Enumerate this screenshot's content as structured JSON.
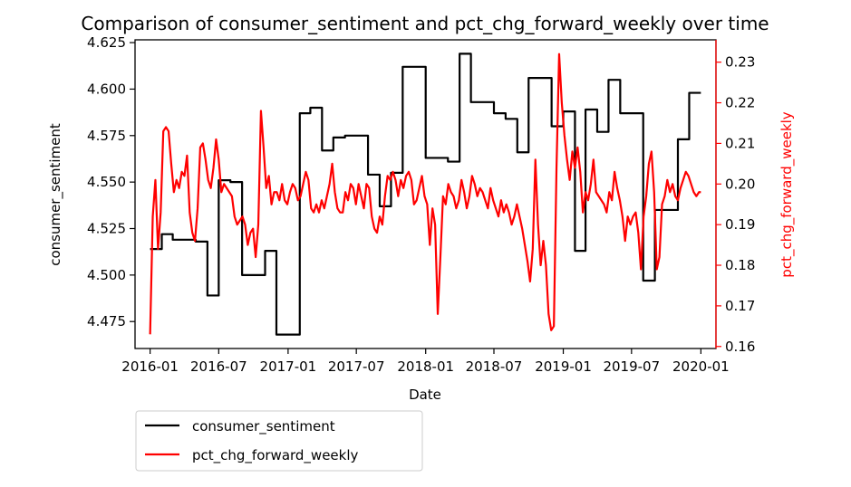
{
  "chart_data": {
    "type": "line",
    "title": "Comparison of consumer_sentiment and pct_chg_forward_weekly over time",
    "xlabel": "Date",
    "ylabel_left": "consumer_sentiment",
    "ylabel_right": "pct_chg_forward_weekly",
    "x_ticks": [
      "2016-01",
      "2016-07",
      "2017-01",
      "2017-07",
      "2018-01",
      "2018-07",
      "2019-01",
      "2019-07",
      "2020-01"
    ],
    "y_left_ticks": [
      "4.475",
      "4.500",
      "4.525",
      "4.550",
      "4.575",
      "4.600",
      "4.625"
    ],
    "y_right_ticks": [
      "0.16",
      "0.17",
      "0.18",
      "0.19",
      "0.20",
      "0.21",
      "0.22",
      "0.23"
    ],
    "xlim": [
      "2015-11-22",
      "2020-02-10"
    ],
    "ylim_left": [
      4.4605,
      4.6265
    ],
    "ylim_right": [
      0.1595,
      0.2355
    ],
    "grid": false,
    "legend_placement": "below-left",
    "colors": {
      "consumer_sentiment": "#000000",
      "pct_chg_forward_weekly": "#ff0000",
      "right_axis": "#ff0000"
    },
    "series": [
      {
        "name": "consumer_sentiment",
        "axis": "left",
        "color": "#000000",
        "step": true,
        "points": [
          [
            "2016-01-01",
            4.514
          ],
          [
            "2016-02-01",
            4.522
          ],
          [
            "2016-03-01",
            4.519
          ],
          [
            "2016-05-01",
            4.518
          ],
          [
            "2016-06-01",
            4.489
          ],
          [
            "2016-07-01",
            4.551
          ],
          [
            "2016-08-01",
            4.55
          ],
          [
            "2016-09-01",
            4.5
          ],
          [
            "2016-11-01",
            4.513
          ],
          [
            "2016-12-01",
            4.468
          ],
          [
            "2017-02-01",
            4.587
          ],
          [
            "2017-03-01",
            4.59
          ],
          [
            "2017-04-01",
            4.567
          ],
          [
            "2017-05-01",
            4.574
          ],
          [
            "2017-06-01",
            4.575
          ],
          [
            "2017-08-01",
            4.554
          ],
          [
            "2017-09-01",
            4.537
          ],
          [
            "2017-10-01",
            4.555
          ],
          [
            "2017-11-01",
            4.612
          ],
          [
            "2018-01-01",
            4.563
          ],
          [
            "2018-03-01",
            4.561
          ],
          [
            "2018-04-01",
            4.619
          ],
          [
            "2018-05-01",
            4.593
          ],
          [
            "2018-07-01",
            4.587
          ],
          [
            "2018-08-01",
            4.584
          ],
          [
            "2018-09-01",
            4.566
          ],
          [
            "2018-10-01",
            4.606
          ],
          [
            "2018-12-01",
            4.58
          ],
          [
            "2019-01-01",
            4.588
          ],
          [
            "2019-02-01",
            4.513
          ],
          [
            "2019-03-01",
            4.589
          ],
          [
            "2019-04-01",
            4.577
          ],
          [
            "2019-05-01",
            4.605
          ],
          [
            "2019-06-01",
            4.587
          ],
          [
            "2019-08-01",
            4.497
          ],
          [
            "2019-09-01",
            4.535
          ],
          [
            "2019-11-01",
            4.573
          ],
          [
            "2019-12-01",
            4.598
          ],
          [
            "2020-01-01",
            4.598
          ]
        ]
      },
      {
        "name": "pct_chg_forward_weekly",
        "axis": "right",
        "color": "#ff0000",
        "step": false,
        "points": [
          [
            "2016-01-01",
            0.163
          ],
          [
            "2016-01-08",
            0.192
          ],
          [
            "2016-01-15",
            0.201
          ],
          [
            "2016-01-22",
            0.184
          ],
          [
            "2016-01-29",
            0.193
          ],
          [
            "2016-02-05",
            0.213
          ],
          [
            "2016-02-12",
            0.214
          ],
          [
            "2016-02-19",
            0.213
          ],
          [
            "2016-02-26",
            0.205
          ],
          [
            "2016-03-04",
            0.198
          ],
          [
            "2016-03-11",
            0.201
          ],
          [
            "2016-03-18",
            0.199
          ],
          [
            "2016-03-25",
            0.203
          ],
          [
            "2016-04-01",
            0.202
          ],
          [
            "2016-04-08",
            0.207
          ],
          [
            "2016-04-15",
            0.193
          ],
          [
            "2016-04-22",
            0.188
          ],
          [
            "2016-04-29",
            0.186
          ],
          [
            "2016-05-06",
            0.194
          ],
          [
            "2016-05-13",
            0.209
          ],
          [
            "2016-05-20",
            0.21
          ],
          [
            "2016-05-27",
            0.206
          ],
          [
            "2016-06-03",
            0.201
          ],
          [
            "2016-06-10",
            0.199
          ],
          [
            "2016-06-17",
            0.204
          ],
          [
            "2016-06-24",
            0.211
          ],
          [
            "2016-07-01",
            0.206
          ],
          [
            "2016-07-08",
            0.198
          ],
          [
            "2016-07-15",
            0.2
          ],
          [
            "2016-07-22",
            0.199
          ],
          [
            "2016-07-29",
            0.198
          ],
          [
            "2016-08-05",
            0.197
          ],
          [
            "2016-08-12",
            0.192
          ],
          [
            "2016-08-19",
            0.19
          ],
          [
            "2016-08-26",
            0.191
          ],
          [
            "2016-09-02",
            0.192
          ],
          [
            "2016-09-09",
            0.19
          ],
          [
            "2016-09-16",
            0.185
          ],
          [
            "2016-09-23",
            0.188
          ],
          [
            "2016-09-30",
            0.189
          ],
          [
            "2016-10-07",
            0.182
          ],
          [
            "2016-10-14",
            0.19
          ],
          [
            "2016-10-21",
            0.218
          ],
          [
            "2016-10-28",
            0.209
          ],
          [
            "2016-11-04",
            0.199
          ],
          [
            "2016-11-11",
            0.202
          ],
          [
            "2016-11-18",
            0.195
          ],
          [
            "2016-11-25",
            0.198
          ],
          [
            "2016-12-02",
            0.198
          ],
          [
            "2016-12-09",
            0.196
          ],
          [
            "2016-12-16",
            0.2
          ],
          [
            "2016-12-23",
            0.196
          ],
          [
            "2016-12-30",
            0.195
          ],
          [
            "2017-01-06",
            0.198
          ],
          [
            "2017-01-13",
            0.2
          ],
          [
            "2017-01-20",
            0.199
          ],
          [
            "2017-01-27",
            0.196
          ],
          [
            "2017-02-03",
            0.197
          ],
          [
            "2017-02-10",
            0.2
          ],
          [
            "2017-02-17",
            0.203
          ],
          [
            "2017-02-24",
            0.201
          ],
          [
            "2017-03-03",
            0.194
          ],
          [
            "2017-03-10",
            0.193
          ],
          [
            "2017-03-17",
            0.195
          ],
          [
            "2017-03-24",
            0.193
          ],
          [
            "2017-03-31",
            0.196
          ],
          [
            "2017-04-07",
            0.194
          ],
          [
            "2017-04-14",
            0.197
          ],
          [
            "2017-04-21",
            0.2
          ],
          [
            "2017-04-28",
            0.205
          ],
          [
            "2017-05-05",
            0.198
          ],
          [
            "2017-05-12",
            0.194
          ],
          [
            "2017-05-19",
            0.193
          ],
          [
            "2017-05-26",
            0.193
          ],
          [
            "2017-06-02",
            0.198
          ],
          [
            "2017-06-09",
            0.196
          ],
          [
            "2017-06-16",
            0.2
          ],
          [
            "2017-06-23",
            0.199
          ],
          [
            "2017-06-30",
            0.195
          ],
          [
            "2017-07-07",
            0.2
          ],
          [
            "2017-07-14",
            0.197
          ],
          [
            "2017-07-21",
            0.194
          ],
          [
            "2017-07-28",
            0.2
          ],
          [
            "2017-08-04",
            0.199
          ],
          [
            "2017-08-11",
            0.192
          ],
          [
            "2017-08-18",
            0.189
          ],
          [
            "2017-08-25",
            0.188
          ],
          [
            "2017-09-01",
            0.192
          ],
          [
            "2017-09-08",
            0.19
          ],
          [
            "2017-09-15",
            0.197
          ],
          [
            "2017-09-22",
            0.202
          ],
          [
            "2017-09-29",
            0.201
          ],
          [
            "2017-10-06",
            0.203
          ],
          [
            "2017-10-13",
            0.201
          ],
          [
            "2017-10-20",
            0.197
          ],
          [
            "2017-10-27",
            0.201
          ],
          [
            "2017-11-03",
            0.199
          ],
          [
            "2017-11-10",
            0.202
          ],
          [
            "2017-11-17",
            0.203
          ],
          [
            "2017-11-24",
            0.201
          ],
          [
            "2017-12-01",
            0.195
          ],
          [
            "2017-12-08",
            0.196
          ],
          [
            "2017-12-15",
            0.199
          ],
          [
            "2017-12-22",
            0.202
          ],
          [
            "2017-12-29",
            0.197
          ],
          [
            "2018-01-05",
            0.195
          ],
          [
            "2018-01-12",
            0.185
          ],
          [
            "2018-01-19",
            0.194
          ],
          [
            "2018-01-26",
            0.19
          ],
          [
            "2018-02-02",
            0.168
          ],
          [
            "2018-02-09",
            0.182
          ],
          [
            "2018-02-16",
            0.197
          ],
          [
            "2018-02-23",
            0.195
          ],
          [
            "2018-03-02",
            0.2
          ],
          [
            "2018-03-09",
            0.198
          ],
          [
            "2018-03-16",
            0.197
          ],
          [
            "2018-03-23",
            0.194
          ],
          [
            "2018-03-30",
            0.196
          ],
          [
            "2018-04-06",
            0.201
          ],
          [
            "2018-04-13",
            0.198
          ],
          [
            "2018-04-20",
            0.194
          ],
          [
            "2018-04-27",
            0.197
          ],
          [
            "2018-05-04",
            0.202
          ],
          [
            "2018-05-11",
            0.2
          ],
          [
            "2018-05-18",
            0.197
          ],
          [
            "2018-05-25",
            0.199
          ],
          [
            "2018-06-01",
            0.198
          ],
          [
            "2018-06-08",
            0.196
          ],
          [
            "2018-06-15",
            0.194
          ],
          [
            "2018-06-22",
            0.199
          ],
          [
            "2018-06-29",
            0.196
          ],
          [
            "2018-07-06",
            0.194
          ],
          [
            "2018-07-13",
            0.192
          ],
          [
            "2018-07-20",
            0.196
          ],
          [
            "2018-07-27",
            0.193
          ],
          [
            "2018-08-03",
            0.195
          ],
          [
            "2018-08-10",
            0.193
          ],
          [
            "2018-08-17",
            0.19
          ],
          [
            "2018-08-24",
            0.192
          ],
          [
            "2018-08-31",
            0.195
          ],
          [
            "2018-09-07",
            0.192
          ],
          [
            "2018-09-14",
            0.189
          ],
          [
            "2018-09-21",
            0.185
          ],
          [
            "2018-09-28",
            0.181
          ],
          [
            "2018-10-05",
            0.176
          ],
          [
            "2018-10-12",
            0.184
          ],
          [
            "2018-10-19",
            0.206
          ],
          [
            "2018-10-26",
            0.19
          ],
          [
            "2018-11-02",
            0.18
          ],
          [
            "2018-11-09",
            0.186
          ],
          [
            "2018-11-16",
            0.18
          ],
          [
            "2018-11-23",
            0.168
          ],
          [
            "2018-11-30",
            0.164
          ],
          [
            "2018-12-07",
            0.165
          ],
          [
            "2018-12-14",
            0.204
          ],
          [
            "2018-12-21",
            0.232
          ],
          [
            "2018-12-28",
            0.22
          ],
          [
            "2019-01-04",
            0.212
          ],
          [
            "2019-01-11",
            0.206
          ],
          [
            "2019-01-18",
            0.201
          ],
          [
            "2019-01-25",
            0.208
          ],
          [
            "2019-02-01",
            0.204
          ],
          [
            "2019-02-08",
            0.209
          ],
          [
            "2019-02-15",
            0.203
          ],
          [
            "2019-02-22",
            0.193
          ],
          [
            "2019-03-01",
            0.198
          ],
          [
            "2019-03-08",
            0.196
          ],
          [
            "2019-03-15",
            0.2
          ],
          [
            "2019-03-22",
            0.206
          ],
          [
            "2019-03-29",
            0.198
          ],
          [
            "2019-04-05",
            0.197
          ],
          [
            "2019-04-12",
            0.196
          ],
          [
            "2019-04-19",
            0.195
          ],
          [
            "2019-04-26",
            0.193
          ],
          [
            "2019-05-03",
            0.198
          ],
          [
            "2019-05-10",
            0.196
          ],
          [
            "2019-05-17",
            0.203
          ],
          [
            "2019-05-24",
            0.199
          ],
          [
            "2019-05-31",
            0.196
          ],
          [
            "2019-06-07",
            0.192
          ],
          [
            "2019-06-14",
            0.186
          ],
          [
            "2019-06-21",
            0.192
          ],
          [
            "2019-06-28",
            0.19
          ],
          [
            "2019-07-05",
            0.192
          ],
          [
            "2019-07-12",
            0.193
          ],
          [
            "2019-07-19",
            0.188
          ],
          [
            "2019-07-26",
            0.179
          ],
          [
            "2019-08-02",
            0.192
          ],
          [
            "2019-08-09",
            0.197
          ],
          [
            "2019-08-16",
            0.205
          ],
          [
            "2019-08-23",
            0.208
          ],
          [
            "2019-08-30",
            0.198
          ],
          [
            "2019-09-06",
            0.179
          ],
          [
            "2019-09-13",
            0.182
          ],
          [
            "2019-09-20",
            0.195
          ],
          [
            "2019-09-27",
            0.197
          ],
          [
            "2019-10-04",
            0.201
          ],
          [
            "2019-10-11",
            0.198
          ],
          [
            "2019-10-18",
            0.2
          ],
          [
            "2019-10-25",
            0.197
          ],
          [
            "2019-11-01",
            0.196
          ],
          [
            "2019-11-08",
            0.199
          ],
          [
            "2019-11-15",
            0.201
          ],
          [
            "2019-11-22",
            0.203
          ],
          [
            "2019-11-29",
            0.202
          ],
          [
            "2019-12-06",
            0.2
          ],
          [
            "2019-12-13",
            0.198
          ],
          [
            "2019-12-20",
            0.197
          ],
          [
            "2019-12-27",
            0.198
          ],
          [
            "2020-01-01",
            0.198
          ]
        ]
      }
    ]
  }
}
